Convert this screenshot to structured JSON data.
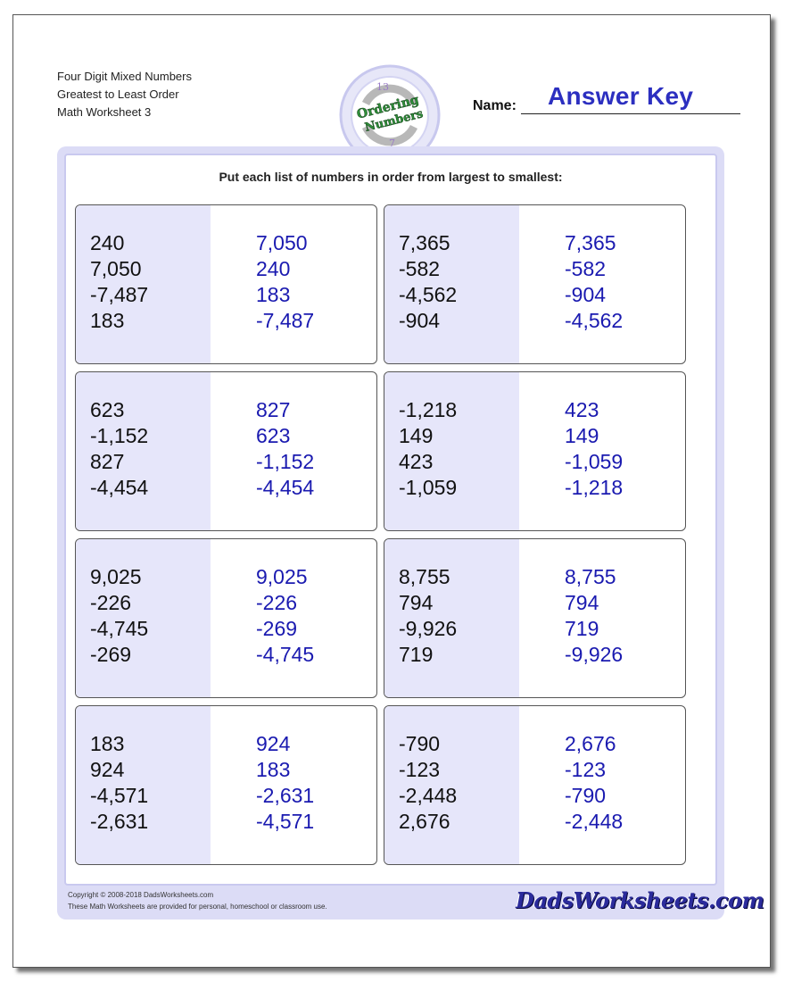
{
  "header": {
    "line1": "Four Digit Mixed Numbers",
    "line2": "Greatest to Least Order",
    "line3": "Math Worksheet 3"
  },
  "logo": {
    "top_number": "13",
    "word1": "Ordering",
    "word2": "Numbers",
    "bottom_number": "7"
  },
  "name": {
    "label": "Name:",
    "value": "Answer Key"
  },
  "instructions": "Put each list of numbers in order from largest to smallest:",
  "problems": [
    {
      "given": [
        "240",
        "7,050",
        "-7,487",
        "183"
      ],
      "answer": [
        "7,050",
        "240",
        "183",
        "-7,487"
      ]
    },
    {
      "given": [
        "7,365",
        "-582",
        "-4,562",
        "-904"
      ],
      "answer": [
        "7,365",
        "-582",
        "-904",
        "-4,562"
      ]
    },
    {
      "given": [
        "623",
        "-1,152",
        "827",
        "-4,454"
      ],
      "answer": [
        "827",
        "623",
        "-1,152",
        "-4,454"
      ]
    },
    {
      "given": [
        "-1,218",
        "149",
        "423",
        "-1,059"
      ],
      "answer": [
        "423",
        "149",
        "-1,059",
        "-1,218"
      ]
    },
    {
      "given": [
        "9,025",
        "-226",
        "-4,745",
        "-269"
      ],
      "answer": [
        "9,025",
        "-226",
        "-269",
        "-4,745"
      ]
    },
    {
      "given": [
        "8,755",
        "794",
        "-9,926",
        "719"
      ],
      "answer": [
        "8,755",
        "794",
        "719",
        "-9,926"
      ]
    },
    {
      "given": [
        "183",
        "924",
        "-4,571",
        "-2,631"
      ],
      "answer": [
        "924",
        "183",
        "-2,631",
        "-4,571"
      ]
    },
    {
      "given": [
        "-790",
        "-123",
        "-2,448",
        "2,676"
      ],
      "answer": [
        "2,676",
        "-123",
        "-790",
        "-2,448"
      ]
    }
  ],
  "footer": {
    "copyright": "Copyright © 2008-2018 DadsWorksheets.com",
    "note": "These Math Worksheets are provided for personal, homeschool or classroom use.",
    "brand": "DadsWorksheets.com"
  },
  "colors": {
    "answer_text": "#1a1ab0",
    "answer_key": "#2c2fc0",
    "frame": "#dcdcf6",
    "shade": "#e6e6fa"
  }
}
